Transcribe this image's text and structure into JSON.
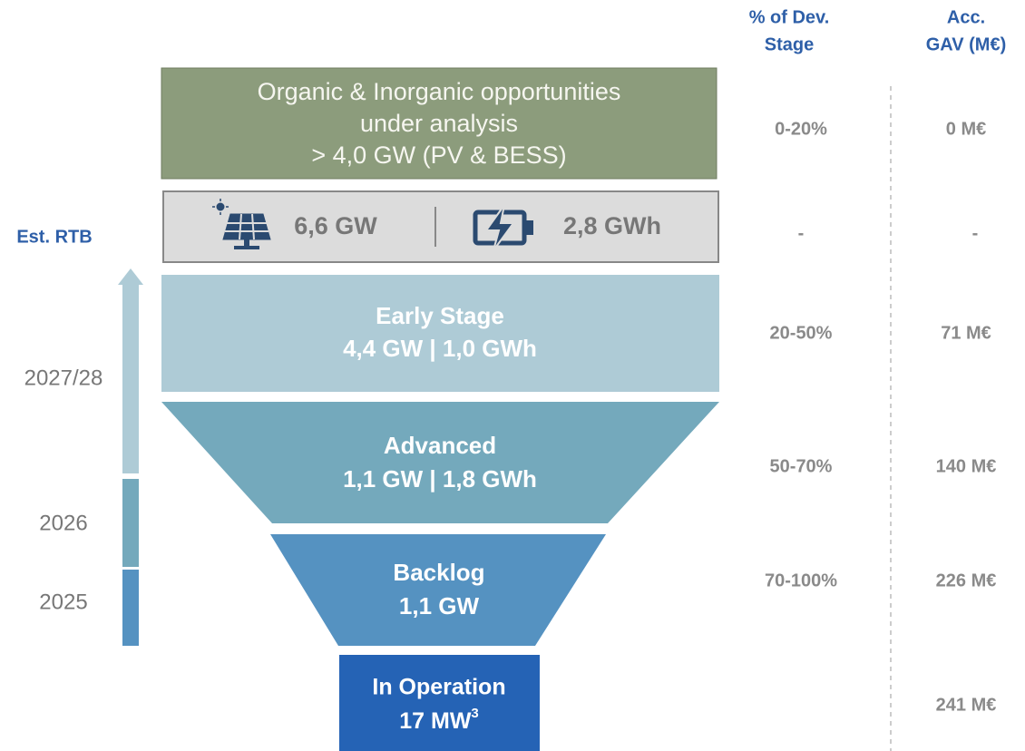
{
  "header": {
    "dev_stage": [
      "% of Dev.",
      "Stage"
    ],
    "gav": [
      "Acc.",
      "GAV (M€)"
    ]
  },
  "timeline": {
    "label": "Est. RTB",
    "years": [
      "2027/28",
      "2026",
      "2025"
    ]
  },
  "stages": [
    {
      "lines": [
        "Organic & Inorganic opportunities",
        "under analysis",
        "> 4,0 GW (PV & BESS)"
      ],
      "dev": "0-20%",
      "gav": "0 M€"
    },
    {
      "pv": "6,6 GW",
      "bess": "2,8 GWh",
      "dev": "-",
      "gav": "-"
    },
    {
      "lines": [
        "Early Stage",
        "4,4 GW | 1,0 GWh"
      ],
      "dev": "20-50%",
      "gav": "71 M€"
    },
    {
      "lines": [
        "Advanced",
        "1,1 GW | 1,8 GWh"
      ],
      "dev": "50-70%",
      "gav": "140 M€"
    },
    {
      "lines": [
        "Backlog",
        "1,1 GW"
      ],
      "dev": "70-100%",
      "gav": "226 M€"
    },
    {
      "lines": [
        "In Operation"
      ],
      "capacity": "17 MW",
      "note": "3",
      "gav": "241 M€"
    }
  ]
}
